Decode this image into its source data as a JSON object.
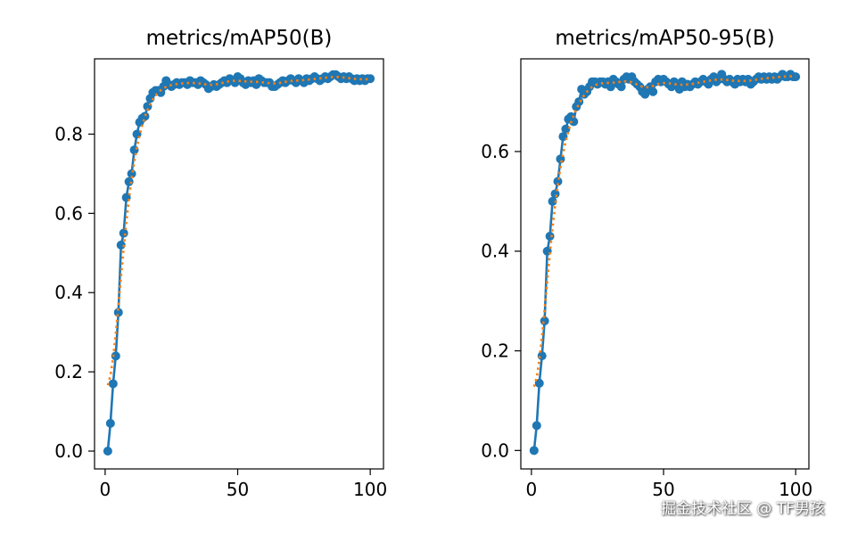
{
  "chart_data": [
    {
      "type": "line",
      "title": "metrics/mAP50(B)",
      "xlabel": "",
      "ylabel": "",
      "xlim": [
        -4,
        105
      ],
      "ylim": [
        -0.045,
        0.99
      ],
      "xticks": [
        0,
        50,
        100
      ],
      "xtick_labels": [
        "0",
        "50",
        "100"
      ],
      "yticks": [
        0,
        0.2,
        0.4,
        0.6,
        0.8
      ],
      "ytick_labels": [
        "0.0",
        "0.2",
        "0.4",
        "0.6",
        "0.8"
      ],
      "grid": false,
      "colors": {
        "results": "#1f77b4",
        "smooth": "#ff7f0e"
      },
      "smooth_sigma": 3,
      "series": [
        {
          "name": "results",
          "values": [
            0.0,
            0.07,
            0.17,
            0.24,
            0.35,
            0.52,
            0.55,
            0.64,
            0.68,
            0.7,
            0.76,
            0.8,
            0.83,
            0.84,
            0.845,
            0.87,
            0.89,
            0.905,
            0.91,
            0.91,
            0.905,
            0.92,
            0.935,
            0.925,
            0.92,
            0.925,
            0.93,
            0.925,
            0.93,
            0.93,
            0.925,
            0.935,
            0.93,
            0.93,
            0.925,
            0.935,
            0.93,
            0.925,
            0.915,
            0.92,
            0.925,
            0.92,
            0.925,
            0.93,
            0.935,
            0.93,
            0.94,
            0.935,
            0.93,
            0.945,
            0.94,
            0.93,
            0.925,
            0.935,
            0.93,
            0.935,
            0.925,
            0.94,
            0.935,
            0.93,
            0.93,
            0.93,
            0.92,
            0.92,
            0.925,
            0.93,
            0.935,
            0.93,
            0.935,
            0.94,
            0.935,
            0.93,
            0.94,
            0.935,
            0.93,
            0.94,
            0.935,
            0.94,
            0.945,
            0.94,
            0.935,
            0.94,
            0.945,
            0.94,
            0.945,
            0.95,
            0.95,
            0.945,
            0.94,
            0.945,
            0.94,
            0.945,
            0.94,
            0.935,
            0.94,
            0.935,
            0.94,
            0.935,
            0.94,
            0.94
          ]
        }
      ]
    },
    {
      "type": "line",
      "title": "metrics/mAP50-95(B)",
      "xlabel": "",
      "ylabel": "",
      "xlim": [
        -4,
        105
      ],
      "ylim": [
        -0.037,
        0.786
      ],
      "xticks": [
        0,
        50,
        100
      ],
      "xtick_labels": [
        "0",
        "50",
        "100"
      ],
      "yticks": [
        0,
        0.2,
        0.4,
        0.6
      ],
      "ytick_labels": [
        "0.0",
        "0.2",
        "0.4",
        "0.6"
      ],
      "grid": false,
      "colors": {
        "results": "#1f77b4",
        "smooth": "#ff7f0e"
      },
      "smooth_sigma": 3,
      "series": [
        {
          "name": "results",
          "values": [
            0.0,
            0.05,
            0.135,
            0.19,
            0.26,
            0.4,
            0.43,
            0.5,
            0.515,
            0.54,
            0.585,
            0.63,
            0.645,
            0.665,
            0.67,
            0.66,
            0.69,
            0.7,
            0.725,
            0.715,
            0.72,
            0.73,
            0.74,
            0.74,
            0.735,
            0.74,
            0.74,
            0.735,
            0.74,
            0.73,
            0.745,
            0.74,
            0.735,
            0.73,
            0.745,
            0.75,
            0.745,
            0.75,
            0.74,
            0.735,
            0.73,
            0.72,
            0.715,
            0.725,
            0.73,
            0.72,
            0.74,
            0.745,
            0.74,
            0.745,
            0.74,
            0.735,
            0.73,
            0.74,
            0.735,
            0.725,
            0.74,
            0.73,
            0.735,
            0.73,
            0.735,
            0.74,
            0.735,
            0.74,
            0.745,
            0.74,
            0.735,
            0.745,
            0.75,
            0.74,
            0.745,
            0.755,
            0.745,
            0.74,
            0.745,
            0.74,
            0.735,
            0.745,
            0.74,
            0.745,
            0.74,
            0.745,
            0.735,
            0.74,
            0.745,
            0.75,
            0.745,
            0.75,
            0.745,
            0.75,
            0.745,
            0.75,
            0.745,
            0.75,
            0.755,
            0.75,
            0.75,
            0.755,
            0.75,
            0.75
          ]
        }
      ]
    }
  ],
  "watermark": "掘金技术社区 @ TF男孩"
}
